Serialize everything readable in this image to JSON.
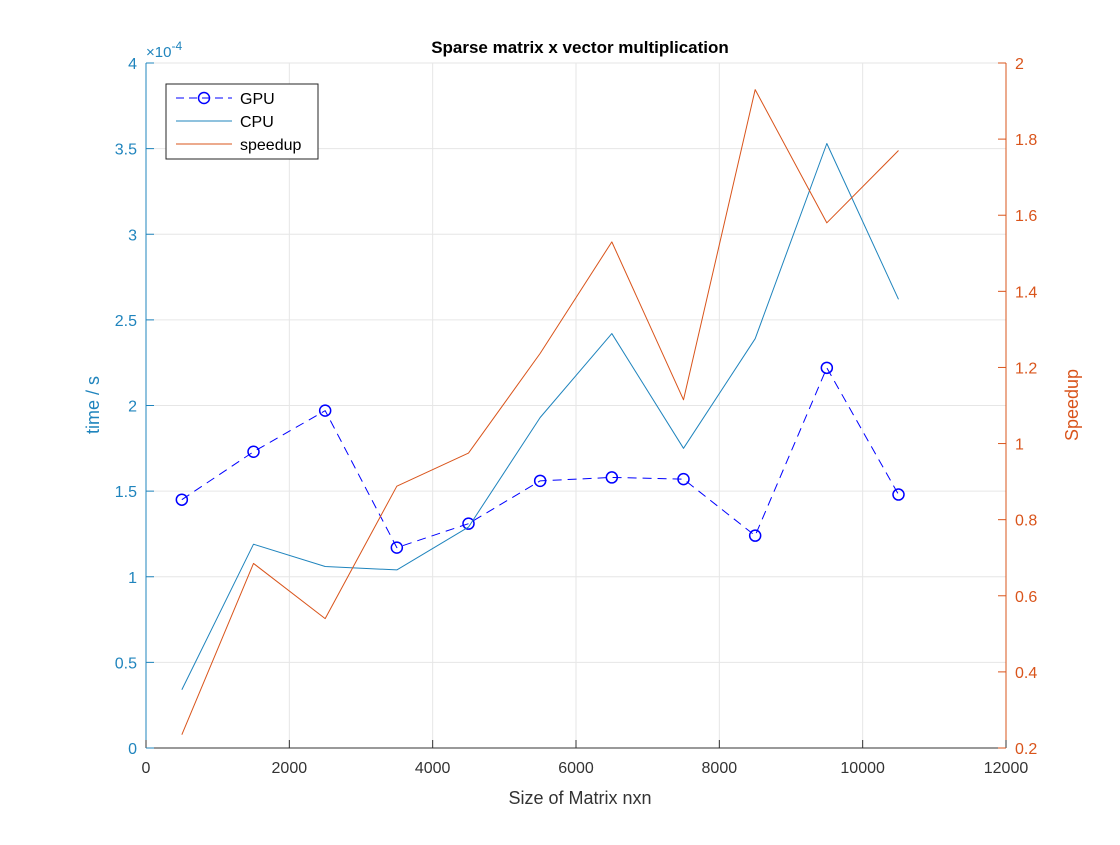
{
  "chart_data": {
    "type": "line",
    "title": "Sparse matrix x vector multiplication",
    "xlabel": "Size of Matrix nxn",
    "ylabel_left": "time / s",
    "ylabel_right": "Speedup",
    "left_axis_exponent": "×10",
    "left_axis_exponent_power": "-4",
    "xlim": [
      0,
      12000
    ],
    "ylim_left": [
      0,
      4
    ],
    "ylim_right": [
      0.2,
      2
    ],
    "grid": true,
    "legend_position": "top-left",
    "x_ticks": [
      0,
      2000,
      4000,
      6000,
      8000,
      10000,
      12000
    ],
    "x_tick_labels": [
      "0",
      "2000",
      "4000",
      "6000",
      "8000",
      "10000",
      "12000"
    ],
    "y_left_ticks": [
      0,
      0.5,
      1,
      1.5,
      2,
      2.5,
      3,
      3.5,
      4
    ],
    "y_left_tick_labels": [
      "0",
      "0.5",
      "1",
      "1.5",
      "2",
      "2.5",
      "3",
      "3.5",
      "4"
    ],
    "y_right_ticks": [
      0.2,
      0.4,
      0.6,
      0.8,
      1,
      1.2,
      1.4,
      1.6,
      1.8,
      2
    ],
    "y_right_tick_labels": [
      "0.2",
      "0.4",
      "0.6",
      "0.8",
      "1",
      "1.2",
      "1.4",
      "1.6",
      "1.8",
      "2"
    ],
    "x": [
      500,
      1500,
      2500,
      3500,
      4500,
      5500,
      6500,
      7500,
      8500,
      9500,
      10500
    ],
    "series": [
      {
        "name": "GPU",
        "axis": "left",
        "style": "dashed-circle",
        "color": "#0000ff",
        "values": [
          1.45,
          1.73,
          1.97,
          1.17,
          1.31,
          1.56,
          1.58,
          1.57,
          1.24,
          2.22,
          1.48
        ]
      },
      {
        "name": "CPU",
        "axis": "left",
        "style": "solid",
        "color": "#1f84bd",
        "values": [
          0.34,
          1.19,
          1.06,
          1.04,
          1.29,
          1.93,
          2.42,
          1.75,
          2.39,
          3.53,
          2.62
        ]
      },
      {
        "name": "speedup",
        "axis": "right",
        "style": "solid",
        "color": "#d9541b",
        "values": [
          0.235,
          0.685,
          0.54,
          0.888,
          0.975,
          1.237,
          1.53,
          1.115,
          1.93,
          1.58,
          1.77
        ]
      }
    ],
    "colors": {
      "left_axis": "#1f84bd",
      "right_axis": "#d9541b",
      "bottom_axis": "#333333",
      "grid": "#e6e6e6"
    }
  }
}
